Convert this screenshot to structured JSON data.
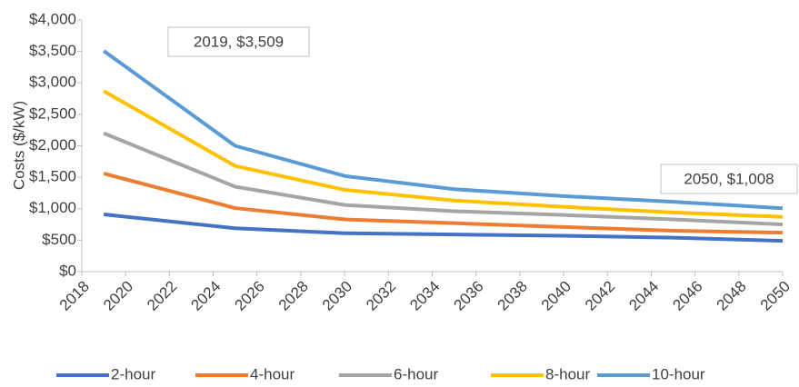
{
  "chart_data": {
    "type": "line",
    "y_label": "Costs ($/kW)",
    "x": [
      2019,
      2025,
      2030,
      2035,
      2040,
      2045,
      2050
    ],
    "series": [
      {
        "name": "2-hour",
        "color": "#4472c4",
        "values": [
          910,
          690,
          610,
          590,
          570,
          540,
          490
        ]
      },
      {
        "name": "4-hour",
        "color": "#ed7d31",
        "values": [
          1560,
          1010,
          830,
          770,
          710,
          650,
          620
        ]
      },
      {
        "name": "6-hour",
        "color": "#a5a5a5",
        "values": [
          2200,
          1350,
          1060,
          960,
          900,
          830,
          750
        ]
      },
      {
        "name": "8-hour",
        "color": "#ffc000",
        "values": [
          2870,
          1680,
          1300,
          1130,
          1030,
          940,
          870
        ]
      },
      {
        "name": "10-hour",
        "color": "#5b9bd5",
        "values": [
          3509,
          2000,
          1520,
          1310,
          1200,
          1110,
          1008
        ]
      }
    ],
    "annotations": [
      "2019, $3,509",
      "2050, $1,008"
    ],
    "xlim": [
      2018,
      2050
    ],
    "xticks": [
      2018,
      2020,
      2022,
      2024,
      2026,
      2028,
      2030,
      2032,
      2034,
      2036,
      2038,
      2040,
      2042,
      2044,
      2046,
      2048,
      2050
    ],
    "ylim": [
      0,
      4000
    ],
    "yticks": [
      {
        "value": 0,
        "label": "$0"
      },
      {
        "value": 500,
        "label": "$500"
      },
      {
        "value": 1000,
        "label": "$1,000"
      },
      {
        "value": 1500,
        "label": "$1,500"
      },
      {
        "value": 2000,
        "label": "$2,000"
      },
      {
        "value": 2500,
        "label": "$2,500"
      },
      {
        "value": 3000,
        "label": "$3,000"
      },
      {
        "value": 3500,
        "label": "$3,500"
      },
      {
        "value": 4000,
        "label": "$4,000"
      }
    ],
    "grid": false,
    "legend": "bottom"
  }
}
